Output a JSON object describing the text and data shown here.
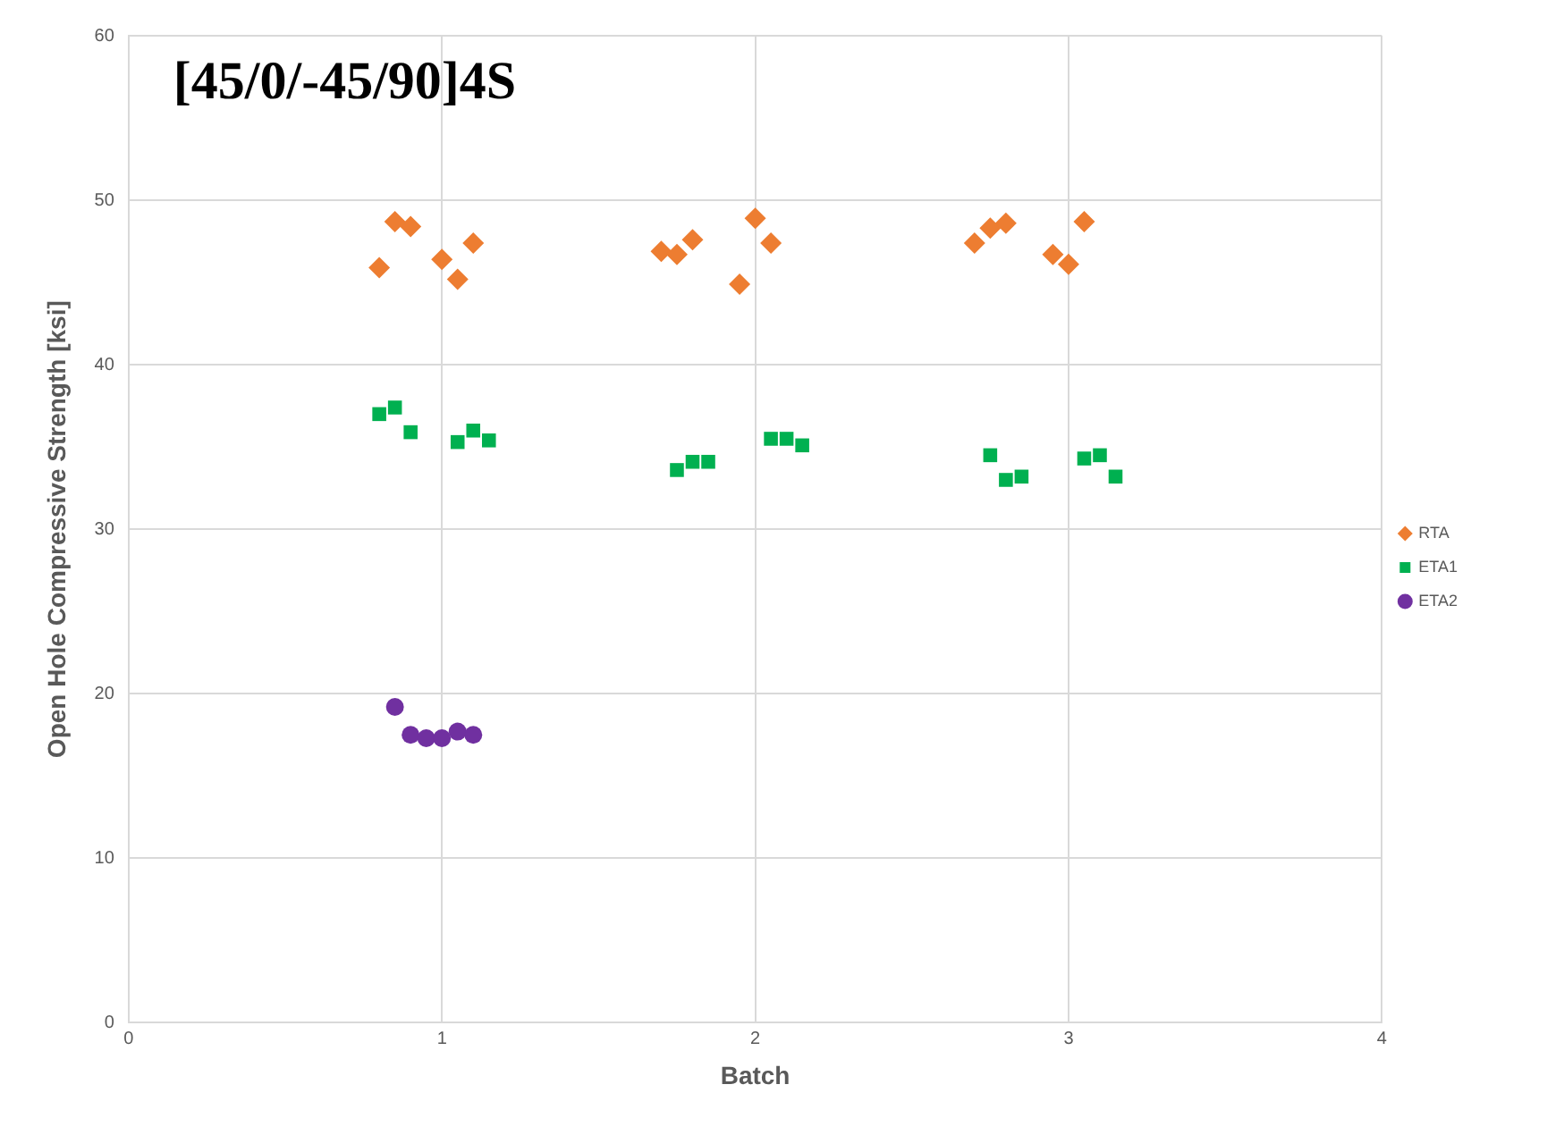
{
  "chart_data": {
    "type": "scatter",
    "title": "[45/0/-45/90]4S",
    "xlabel": "Batch",
    "ylabel": "Open Hole Compressive Strength [ksi]",
    "xlim": [
      0,
      4
    ],
    "xticks": [
      0,
      1,
      2,
      3,
      4
    ],
    "ylim": [
      0,
      60
    ],
    "yticks": [
      0,
      10,
      20,
      30,
      40,
      50,
      60
    ],
    "grid": true,
    "legend": "right",
    "series": [
      {
        "name": "RTA",
        "color": "#ed7d31",
        "marker": "diamond",
        "x": [
          0.8,
          0.85,
          0.9,
          1.0,
          1.05,
          1.1,
          1.7,
          1.75,
          1.8,
          1.95,
          2.0,
          2.05,
          2.7,
          2.75,
          2.8,
          2.95,
          3.0,
          3.05
        ],
        "values": [
          45.9,
          48.7,
          48.4,
          46.4,
          45.2,
          47.4,
          46.9,
          46.7,
          47.6,
          44.9,
          48.9,
          47.4,
          47.4,
          48.3,
          48.6,
          46.7,
          46.1,
          48.7
        ]
      },
      {
        "name": "ETA1",
        "color": "#00b050",
        "marker": "square",
        "x": [
          0.8,
          0.85,
          0.9,
          1.05,
          1.1,
          1.15,
          1.75,
          1.8,
          1.85,
          2.05,
          2.1,
          2.15,
          2.75,
          2.8,
          2.85,
          3.05,
          3.1,
          3.15
        ],
        "values": [
          37.0,
          37.4,
          35.9,
          35.3,
          36.0,
          35.4,
          33.6,
          34.1,
          34.1,
          35.5,
          35.5,
          35.1,
          34.5,
          33.0,
          33.2,
          34.3,
          34.5,
          33.2
        ]
      },
      {
        "name": "ETA2",
        "color": "#7030a0",
        "marker": "circle",
        "x": [
          0.85,
          0.9,
          0.95,
          1.0,
          1.05,
          1.1
        ],
        "values": [
          19.2,
          17.5,
          17.3,
          17.3,
          17.7,
          17.5
        ]
      }
    ]
  }
}
